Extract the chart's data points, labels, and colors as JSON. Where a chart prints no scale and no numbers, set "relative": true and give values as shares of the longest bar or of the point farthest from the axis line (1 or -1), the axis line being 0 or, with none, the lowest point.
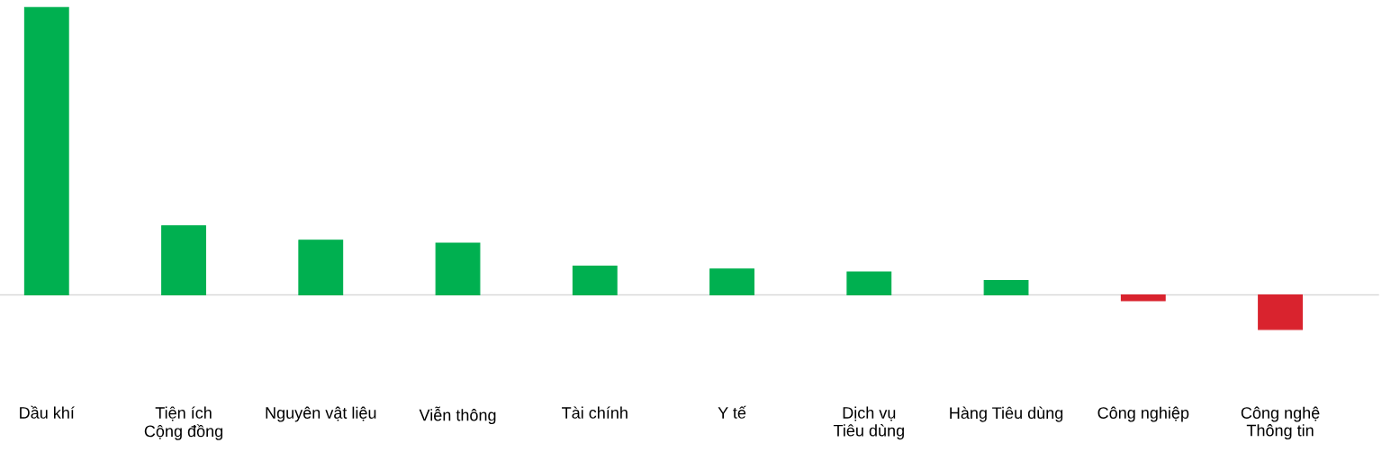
{
  "chart_data": {
    "type": "bar",
    "relative": true,
    "categories": [
      "Dầu khí",
      "Tiện ích Cộng đồng",
      "Nguyên vật liệu",
      "Viễn thông",
      "Tài chính",
      "Y tế",
      "Dịch vụ Tiêu dùng",
      "Hàng Tiêu dùng",
      "Công nghiệp",
      "Công nghệ Thông tin"
    ],
    "values": [
      1,
      0.24,
      0.19,
      0.18,
      0.1,
      0.09,
      0.08,
      0.05,
      -0.02,
      -0.12
    ],
    "colors": [
      "#00b050",
      "#00b050",
      "#00b050",
      "#00b050",
      "#00b050",
      "#00b050",
      "#00b050",
      "#00b050",
      "#d9232e",
      "#d9232e"
    ],
    "grid": false,
    "legend": false
  }
}
